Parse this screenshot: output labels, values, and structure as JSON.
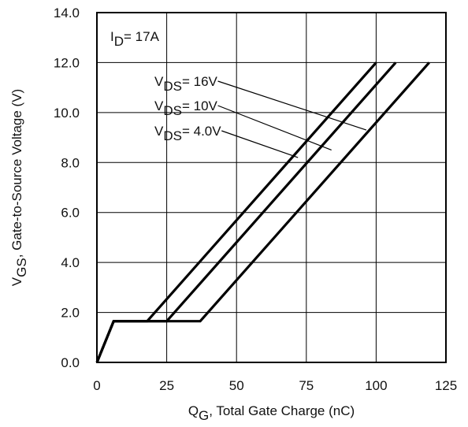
{
  "chart_data": {
    "type": "line",
    "title": "",
    "xlabel": {
      "main": "Q",
      "sub": "G",
      "rest": ",  Total Gate Charge (nC)"
    },
    "ylabel": {
      "main": "V",
      "sub": "GS",
      "rest": ", Gate-to-Source Voltage (V)"
    },
    "xlim": [
      0,
      125
    ],
    "ylim": [
      0,
      14
    ],
    "x_ticks": [
      0,
      25,
      50,
      75,
      100,
      125
    ],
    "x_tick_labels": [
      "0",
      "25",
      "50",
      "75",
      "100",
      "125"
    ],
    "y_ticks": [
      0,
      2,
      4,
      6,
      8,
      10,
      12,
      14
    ],
    "y_tick_labels": [
      "0.0",
      "2.0",
      "4.0",
      "6.0",
      "8.0",
      "10.0",
      "12.0",
      "14.0"
    ],
    "grid": true,
    "annotation": {
      "main": "I",
      "sub": "D",
      "rest": "= 17A"
    },
    "series": [
      {
        "name": "16V",
        "label": {
          "main": "V",
          "sub": "DS",
          "rest": "= 16V"
        },
        "x": [
          0,
          6,
          37,
          119
        ],
        "y": [
          0,
          1.65,
          1.65,
          12
        ]
      },
      {
        "name": "10V",
        "label": {
          "main": "V",
          "sub": "DS",
          "rest": "= 10V"
        },
        "x": [
          0,
          6,
          25,
          107
        ],
        "y": [
          0,
          1.65,
          1.65,
          12
        ]
      },
      {
        "name": "4.0V",
        "label": {
          "main": "V",
          "sub": "DS",
          "rest": "= 4.0V"
        },
        "x": [
          0,
          6,
          18,
          100
        ],
        "y": [
          0,
          1.65,
          1.65,
          12
        ]
      }
    ],
    "label_pointers": [
      {
        "series": "16V",
        "target": [
          96.5,
          9.3
        ]
      },
      {
        "series": "10V",
        "target": [
          84,
          8.5
        ]
      },
      {
        "series": "4.0V",
        "target": [
          72,
          8.2
        ]
      }
    ]
  }
}
